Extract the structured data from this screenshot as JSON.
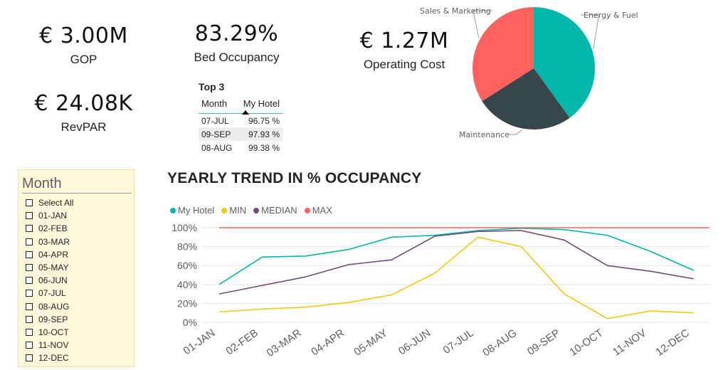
{
  "kpis": {
    "gop": {
      "value": "€ 3.00M",
      "label": "GOP"
    },
    "revpar": {
      "value": "€ 24.08K",
      "label": "RevPAR"
    },
    "occupancy": {
      "value": "83.29%",
      "label": "Bed Occupancy"
    },
    "opcost": {
      "value": "€ 1.27M",
      "label": "Operating Cost"
    }
  },
  "top3": {
    "title": "Top 3",
    "col_month": "Month",
    "col_hotel": "My Hotel",
    "rows": [
      {
        "month": "07-JUL",
        "value": "96.75 %"
      },
      {
        "month": "09-SEP",
        "value": "97.93 %"
      },
      {
        "month": "08-AUG",
        "value": "99.38 %"
      }
    ]
  },
  "slicer": {
    "title": "Month",
    "items": [
      "Select All",
      "01-JAN",
      "02-FEB",
      "03-MAR",
      "04-APR",
      "05-MAY",
      "06-JUN",
      "07-JUL",
      "08-AUG",
      "09-SEP",
      "10-OCT",
      "11-NOV",
      "12-DEC"
    ]
  },
  "chart_data": [
    {
      "type": "pie",
      "labels": [
        "Energy & Fuel",
        "Maintenance",
        "Sales & Marketing"
      ],
      "values": [
        40,
        26,
        34
      ],
      "colors": [
        "#01b8aa",
        "#374649",
        "#fd625e"
      ]
    },
    {
      "type": "line",
      "title": "YEARLY TREND IN % OCCUPANCY",
      "categories": [
        "01-JAN",
        "02-FEB",
        "03-MAR",
        "04-APR",
        "05-MAY",
        "06-JUN",
        "07-JUL",
        "08-AUG",
        "09-SEP",
        "10-OCT",
        "11-NOV",
        "12-DEC"
      ],
      "series": [
        {
          "name": "My Hotel",
          "color": "#01b8aa",
          "values": [
            40,
            69,
            70,
            77,
            90,
            92,
            97,
            99.4,
            98,
            92,
            75,
            55
          ]
        },
        {
          "name": "MIN",
          "color": "#f2c80f",
          "values": [
            11,
            14,
            16,
            21,
            29,
            52,
            90,
            80,
            30,
            4,
            12,
            10
          ]
        },
        {
          "name": "MEDIAN",
          "color": "#734c6e",
          "values": [
            30,
            39,
            48,
            61,
            66,
            91,
            96,
            97,
            87,
            60,
            54,
            46
          ]
        },
        {
          "name": "MAX",
          "color": "#fd625e",
          "values": [
            100,
            100,
            100,
            100,
            100,
            100,
            100,
            100,
            100,
            100,
            100,
            100
          ]
        }
      ],
      "yticks": [
        "0%",
        "20%",
        "40%",
        "60%",
        "80%",
        "100%"
      ],
      "ylim": [
        0,
        100
      ],
      "legend": "top-left",
      "grid": true
    }
  ]
}
